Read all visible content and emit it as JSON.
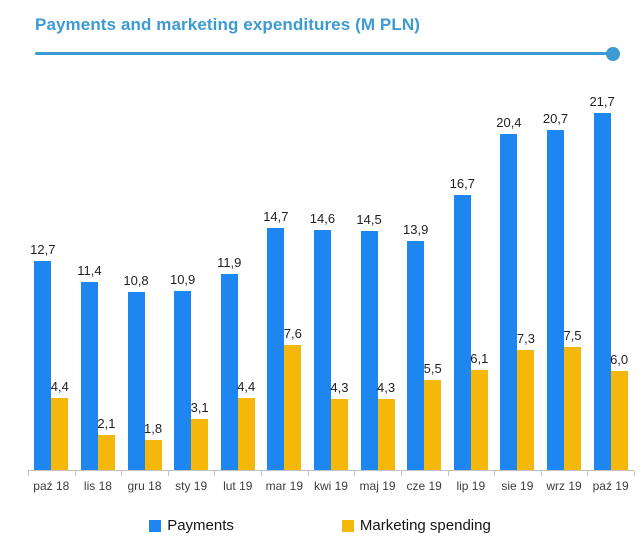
{
  "header": {
    "title": "Payments and marketing expenditures (M PLN)"
  },
  "colors": {
    "payments": "#1E86F0",
    "marketing": "#F5B70A",
    "title_accent": "#3D9BD3",
    "axis": "#C2C2C2"
  },
  "legend": {
    "payments_label": "Payments",
    "marketing_label": "Marketing spending"
  },
  "chart_data": {
    "type": "bar",
    "title": "Payments and marketing expenditures (M PLN)",
    "categories": [
      "paź 18",
      "lis 18",
      "gru 18",
      "sty 19",
      "lut 19",
      "mar 19",
      "kwi 19",
      "maj 19",
      "cze 19",
      "lip 19",
      "sie 19",
      "wrz 19",
      "paź 19"
    ],
    "series": [
      {
        "name": "Payments",
        "color": "#1E86F0",
        "values": [
          12.7,
          11.4,
          10.8,
          10.9,
          11.9,
          14.7,
          14.6,
          14.5,
          13.9,
          16.7,
          20.4,
          20.7,
          21.7
        ]
      },
      {
        "name": "Marketing spending",
        "color": "#F5B70A",
        "values": [
          4.4,
          2.1,
          1.8,
          3.1,
          4.4,
          7.6,
          4.3,
          4.3,
          5.5,
          6.1,
          7.3,
          7.5,
          6.0
        ]
      }
    ],
    "xlabel": "",
    "ylabel": "",
    "ylim": [
      0,
      22
    ],
    "grid": false,
    "value_labels": true,
    "decimal_separator": ",",
    "legend_position": "bottom"
  }
}
